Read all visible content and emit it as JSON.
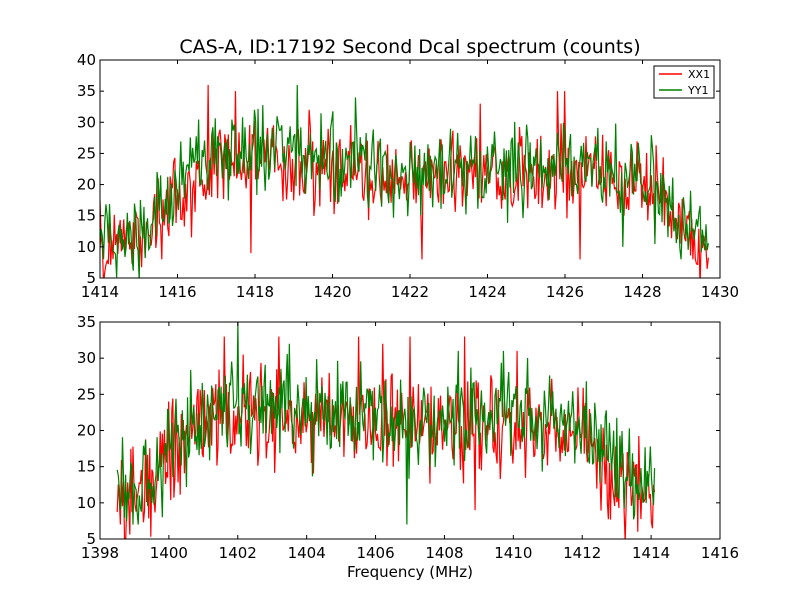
{
  "figure": {
    "title": "CAS-A, ID:17192 Second Dcal spectrum (counts)"
  },
  "chart_data": [
    {
      "type": "line",
      "title": "CAS-A, ID:17192 Second Dcal spectrum (counts)",
      "xlabel": "",
      "ylabel": "",
      "xlim": [
        1414,
        1430
      ],
      "ylim": [
        5,
        40
      ],
      "xticks": [
        1414,
        1416,
        1418,
        1420,
        1422,
        1424,
        1426,
        1428,
        1430
      ],
      "yticks": [
        5,
        10,
        15,
        20,
        25,
        30,
        35,
        40
      ],
      "legend": {
        "placement": "top-right",
        "entries": [
          "XX1",
          "YY1"
        ]
      },
      "data_range": [
        1414.0,
        1429.7
      ],
      "series": [
        {
          "name": "XX1",
          "color": "#ff0000",
          "envelope": [
            [
              1414.0,
              10
            ],
            [
              1415.0,
              12
            ],
            [
              1416.0,
              18
            ],
            [
              1417.0,
              23
            ],
            [
              1418.0,
              24
            ],
            [
              1419.0,
              23
            ],
            [
              1420.0,
              22
            ],
            [
              1421.0,
              21
            ],
            [
              1422.0,
              21
            ],
            [
              1423.0,
              21
            ],
            [
              1424.0,
              22
            ],
            [
              1425.0,
              22
            ],
            [
              1426.0,
              22
            ],
            [
              1427.0,
              22
            ],
            [
              1428.0,
              21
            ],
            [
              1428.5,
              17
            ],
            [
              1429.0,
              14
            ],
            [
              1429.7,
              11
            ]
          ],
          "noise_amplitude": 5,
          "peaks": [
            [
              1416.8,
              36
            ],
            [
              1417.5,
              35
            ],
            [
              1419.4,
              32
            ],
            [
              1423.8,
              33
            ],
            [
              1425.8,
              35
            ],
            [
              1426.0,
              35
            ]
          ],
          "dips": [
            [
              1415.6,
              8
            ],
            [
              1417.9,
              9
            ],
            [
              1422.3,
              8
            ],
            [
              1426.4,
              8
            ],
            [
              1429.3,
              8
            ]
          ]
        },
        {
          "name": "YY1",
          "color": "#008000",
          "envelope": [
            [
              1414.0,
              11
            ],
            [
              1415.0,
              13
            ],
            [
              1416.0,
              20
            ],
            [
              1417.0,
              25
            ],
            [
              1418.0,
              26
            ],
            [
              1419.0,
              25
            ],
            [
              1420.0,
              24
            ],
            [
              1421.0,
              23
            ],
            [
              1422.0,
              22
            ],
            [
              1423.0,
              22
            ],
            [
              1424.0,
              23
            ],
            [
              1425.0,
              23
            ],
            [
              1426.0,
              23
            ],
            [
              1427.0,
              22
            ],
            [
              1428.0,
              21
            ],
            [
              1428.5,
              18
            ],
            [
              1429.0,
              14
            ],
            [
              1429.7,
              11
            ]
          ],
          "noise_amplitude": 5,
          "peaks": [
            [
              1419.1,
              36
            ],
            [
              1418.0,
              32
            ],
            [
              1420.6,
              34
            ]
          ],
          "dips": [
            [
              1429.0,
              8
            ],
            [
              1427.5,
              10
            ]
          ]
        }
      ]
    },
    {
      "type": "line",
      "title": "",
      "xlabel": "Frequency (MHz)",
      "ylabel": "",
      "xlim": [
        1398,
        1416
      ],
      "ylim": [
        5,
        35
      ],
      "xticks": [
        1398,
        1400,
        1402,
        1404,
        1406,
        1408,
        1410,
        1412,
        1414,
        1416
      ],
      "yticks": [
        5,
        10,
        15,
        20,
        25,
        30,
        35
      ],
      "data_range": [
        1398.5,
        1414.1
      ],
      "series": [
        {
          "name": "XX1",
          "color": "#ff0000",
          "envelope": [
            [
              1398.5,
              11
            ],
            [
              1399.5,
              13
            ],
            [
              1400.0,
              18
            ],
            [
              1401.0,
              21
            ],
            [
              1402.0,
              22
            ],
            [
              1403.0,
              22
            ],
            [
              1404.0,
              22
            ],
            [
              1405.0,
              21
            ],
            [
              1406.0,
              21
            ],
            [
              1407.0,
              20
            ],
            [
              1408.0,
              20
            ],
            [
              1409.0,
              20
            ],
            [
              1410.0,
              20
            ],
            [
              1411.0,
              20
            ],
            [
              1412.0,
              19
            ],
            [
              1412.5,
              17
            ],
            [
              1413.0,
              14
            ],
            [
              1414.1,
              11
            ]
          ],
          "noise_amplitude": 5,
          "peaks": [
            [
              1401.6,
              33
            ],
            [
              1403.2,
              33
            ],
            [
              1405.5,
              33
            ],
            [
              1406.2,
              32
            ],
            [
              1407.0,
              33
            ],
            [
              1408.6,
              33
            ],
            [
              1410.1,
              31
            ]
          ],
          "dips": [
            [
              1398.6,
              7
            ],
            [
              1408.9,
              9
            ],
            [
              1413.6,
              6
            ]
          ]
        },
        {
          "name": "YY1",
          "color": "#008000",
          "envelope": [
            [
              1398.5,
              12
            ],
            [
              1399.5,
              13
            ],
            [
              1400.0,
              19
            ],
            [
              1401.0,
              22
            ],
            [
              1402.0,
              24
            ],
            [
              1403.0,
              24
            ],
            [
              1404.0,
              23
            ],
            [
              1405.0,
              22
            ],
            [
              1406.0,
              22
            ],
            [
              1407.0,
              21
            ],
            [
              1408.0,
              21
            ],
            [
              1409.0,
              21
            ],
            [
              1410.0,
              22
            ],
            [
              1411.0,
              22
            ],
            [
              1412.0,
              21
            ],
            [
              1412.5,
              18
            ],
            [
              1413.0,
              15
            ],
            [
              1414.1,
              12
            ]
          ],
          "noise_amplitude": 5,
          "peaks": [
            [
              1402.0,
              35
            ],
            [
              1403.5,
              32
            ],
            [
              1408.4,
              31
            ],
            [
              1409.7,
              31
            ]
          ],
          "dips": [
            [
              1399.1,
              7
            ],
            [
              1399.8,
              8
            ],
            [
              1406.9,
              7
            ]
          ]
        }
      ]
    }
  ]
}
